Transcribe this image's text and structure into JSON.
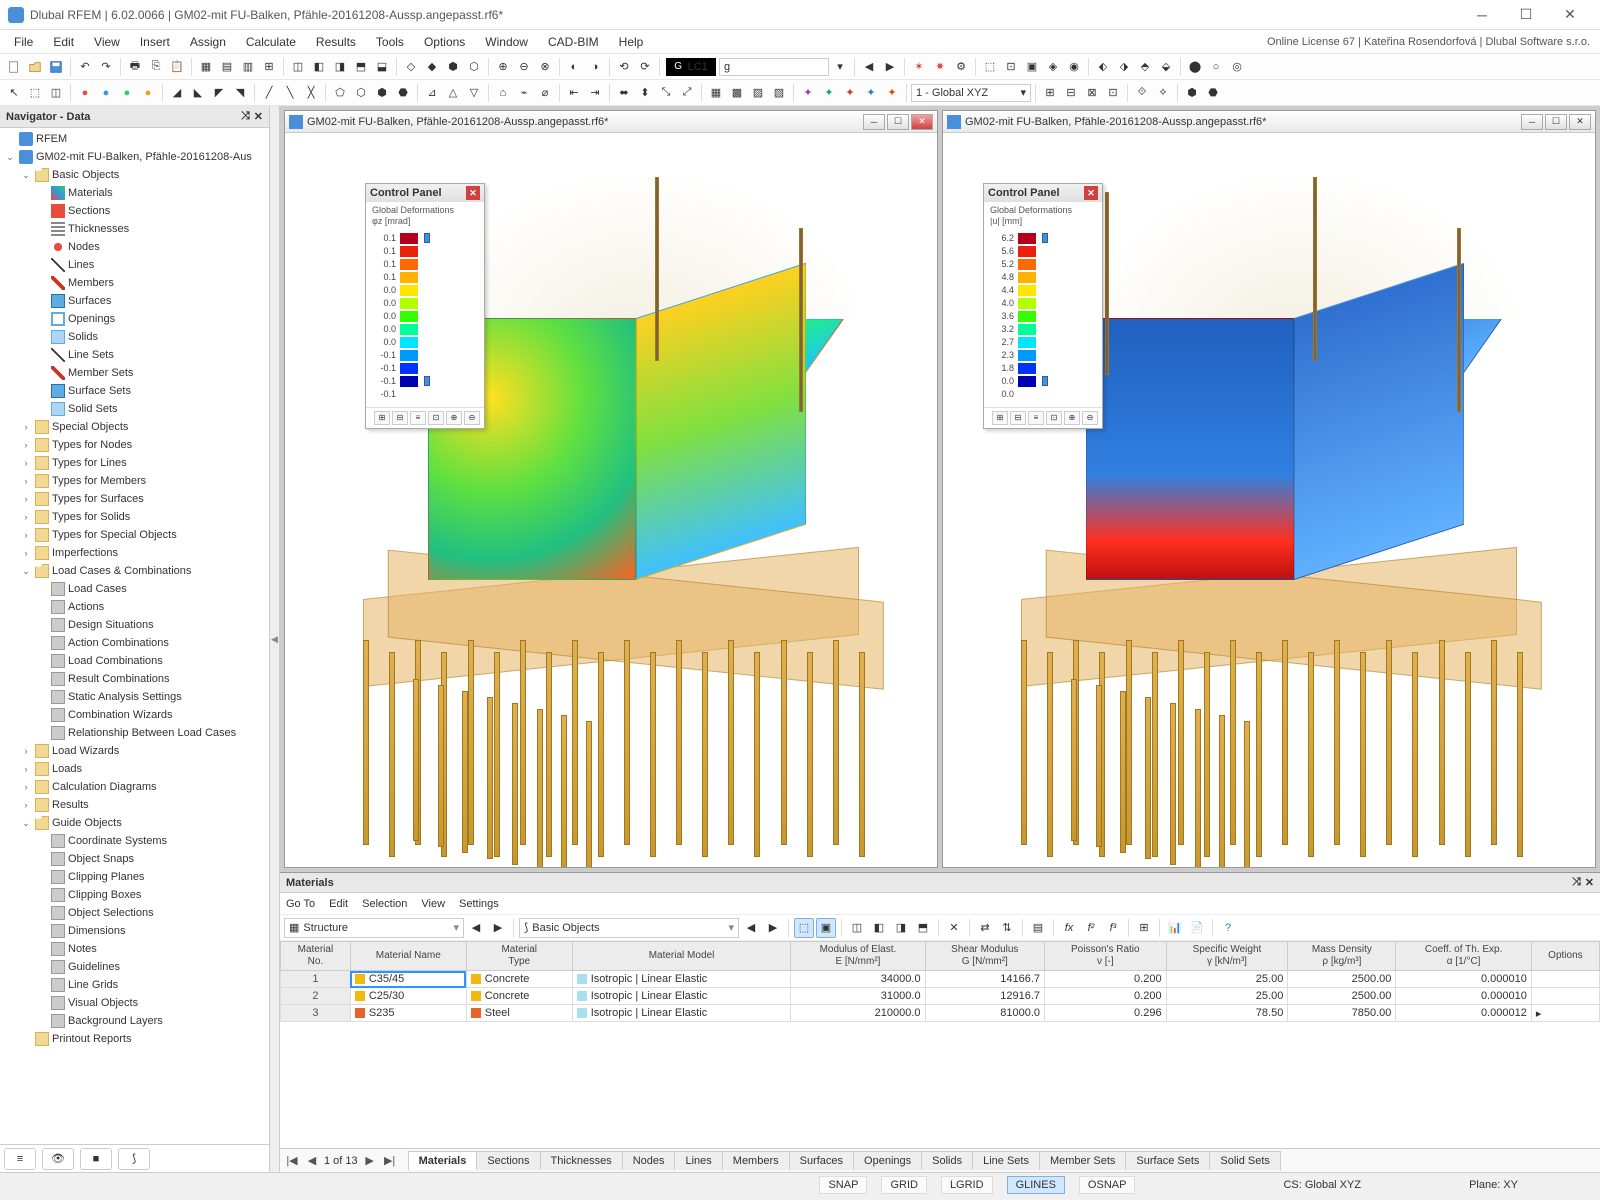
{
  "app": {
    "title": "Dlubal RFEM | 6.02.0066 | GM02-mit FU-Balken, Pfähle-20161208-Aussp.angepasst.rf6*",
    "license": "Online License 67 | Kateřina Rosendorfová | Dlubal Software s.r.o."
  },
  "menu": [
    "File",
    "Edit",
    "View",
    "Insert",
    "Assign",
    "Calculate",
    "Results",
    "Tools",
    "Options",
    "Window",
    "CAD-BIM",
    "Help"
  ],
  "loadcase": {
    "code": "LC1",
    "name": "g",
    "coordsys": "1 - Global XYZ"
  },
  "navigator": {
    "title": "Navigator - Data",
    "root": "RFEM",
    "model": "GM02-mit FU-Balken, Pfähle-20161208-Aus",
    "basic": {
      "title": "Basic Objects",
      "items": [
        "Materials",
        "Sections",
        "Thicknesses",
        "Nodes",
        "Lines",
        "Members",
        "Surfaces",
        "Openings",
        "Solids",
        "Line Sets",
        "Member Sets",
        "Surface Sets",
        "Solid Sets"
      ]
    },
    "mid": [
      "Special Objects",
      "Types for Nodes",
      "Types for Lines",
      "Types for Members",
      "Types for Surfaces",
      "Types for Solids",
      "Types for Special Objects",
      "Imperfections"
    ],
    "lcc": {
      "title": "Load Cases & Combinations",
      "items": [
        "Load Cases",
        "Actions",
        "Design Situations",
        "Action Combinations",
        "Load Combinations",
        "Result Combinations",
        "Static Analysis Settings",
        "Combination Wizards",
        "Relationship Between Load Cases"
      ]
    },
    "mid2": [
      "Load Wizards",
      "Loads",
      "Calculation Diagrams",
      "Results"
    ],
    "guide": {
      "title": "Guide Objects",
      "items": [
        "Coordinate Systems",
        "Object Snaps",
        "Clipping Planes",
        "Clipping Boxes",
        "Object Selections",
        "Dimensions",
        "Notes",
        "Guidelines",
        "Line Grids",
        "Visual Objects",
        "Background Layers"
      ]
    },
    "last": [
      "Printout Reports"
    ]
  },
  "view": {
    "doc": "GM02-mit FU-Balken, Pfähle-20161208-Aussp.angepasst.rf6*"
  },
  "panel1": {
    "title": "Control Panel",
    "sub": "Global Deformations\nφz [mrad]",
    "legend": [
      {
        "v": "0.1",
        "c": "#b4001e"
      },
      {
        "v": "0.1",
        "c": "#e8220d"
      },
      {
        "v": "0.1",
        "c": "#ff6a00"
      },
      {
        "v": "0.1",
        "c": "#ffb000"
      },
      {
        "v": "0.0",
        "c": "#ffe600"
      },
      {
        "v": "0.0",
        "c": "#b3ff00"
      },
      {
        "v": "0.0",
        "c": "#33ff00"
      },
      {
        "v": "0.0",
        "c": "#00ff99"
      },
      {
        "v": "0.0",
        "c": "#00e6ff"
      },
      {
        "v": "-0.1",
        "c": "#0099ff"
      },
      {
        "v": "-0.1",
        "c": "#0033ff"
      },
      {
        "v": "-0.1",
        "c": "#0000b3"
      },
      {
        "v": "-0.1",
        "c": ""
      }
    ]
  },
  "panel2": {
    "title": "Control Panel",
    "sub": "Global Deformations\n|u| [mm]",
    "legend": [
      {
        "v": "6.2",
        "c": "#b4001e"
      },
      {
        "v": "5.6",
        "c": "#e8220d"
      },
      {
        "v": "5.2",
        "c": "#ff6a00"
      },
      {
        "v": "4.8",
        "c": "#ffb000"
      },
      {
        "v": "4.4",
        "c": "#ffe600"
      },
      {
        "v": "4.0",
        "c": "#b3ff00"
      },
      {
        "v": "3.6",
        "c": "#33ff00"
      },
      {
        "v": "3.2",
        "c": "#00ff99"
      },
      {
        "v": "2.7",
        "c": "#00e6ff"
      },
      {
        "v": "2.3",
        "c": "#0099ff"
      },
      {
        "v": "1.8",
        "c": "#0033ff"
      },
      {
        "v": "0.0",
        "c": "#0000b3"
      },
      {
        "v": "0.0",
        "c": ""
      }
    ]
  },
  "materials": {
    "title": "Materials",
    "submenu": [
      "Go To",
      "Edit",
      "Selection",
      "View",
      "Settings"
    ],
    "filter1": "Structure",
    "filter2": "Basic Objects",
    "columns": [
      "Material\nNo.",
      "Material Name",
      "Material\nType",
      "Material Model",
      "Modulus of Elast.\nE [N/mm²]",
      "Shear Modulus\nG [N/mm²]",
      "Poisson's Ratio\nν [-]",
      "Specific Weight\nγ [kN/m³]",
      "Mass Density\nρ [kg/m³]",
      "Coeff. of Th. Exp.\nα [1/°C]",
      "Options"
    ],
    "rows": [
      {
        "no": "1",
        "name": "C35/45",
        "swatch": "#f2b90f",
        "type": "Concrete",
        "model": "Isotropic | Linear Elastic",
        "E": "34000.0",
        "G": "14166.7",
        "nu": "0.200",
        "gamma": "25.00",
        "rho": "2500.00",
        "alpha": "0.000010",
        "mswatch": "#a8e0f0"
      },
      {
        "no": "2",
        "name": "C25/30",
        "swatch": "#f2b90f",
        "type": "Concrete",
        "model": "Isotropic | Linear Elastic",
        "E": "31000.0",
        "G": "12916.7",
        "nu": "0.200",
        "gamma": "25.00",
        "rho": "2500.00",
        "alpha": "0.000010",
        "mswatch": "#a8e0f0"
      },
      {
        "no": "3",
        "name": "S235",
        "swatch": "#e8632a",
        "type": "Steel",
        "model": "Isotropic | Linear Elastic",
        "E": "210000.0",
        "G": "81000.0",
        "nu": "0.296",
        "gamma": "78.50",
        "rho": "7850.00",
        "alpha": "0.000012",
        "mswatch": "#a8e0f0"
      }
    ],
    "page": "1 of 13",
    "tabs": [
      "Materials",
      "Sections",
      "Thicknesses",
      "Nodes",
      "Lines",
      "Members",
      "Surfaces",
      "Openings",
      "Solids",
      "Line Sets",
      "Member Sets",
      "Surface Sets",
      "Solid Sets"
    ]
  },
  "status": {
    "toggles": [
      "SNAP",
      "GRID",
      "LGRID",
      "GLINES",
      "OSNAP"
    ],
    "cs": "CS: Global XYZ",
    "plane": "Plane: XY"
  }
}
